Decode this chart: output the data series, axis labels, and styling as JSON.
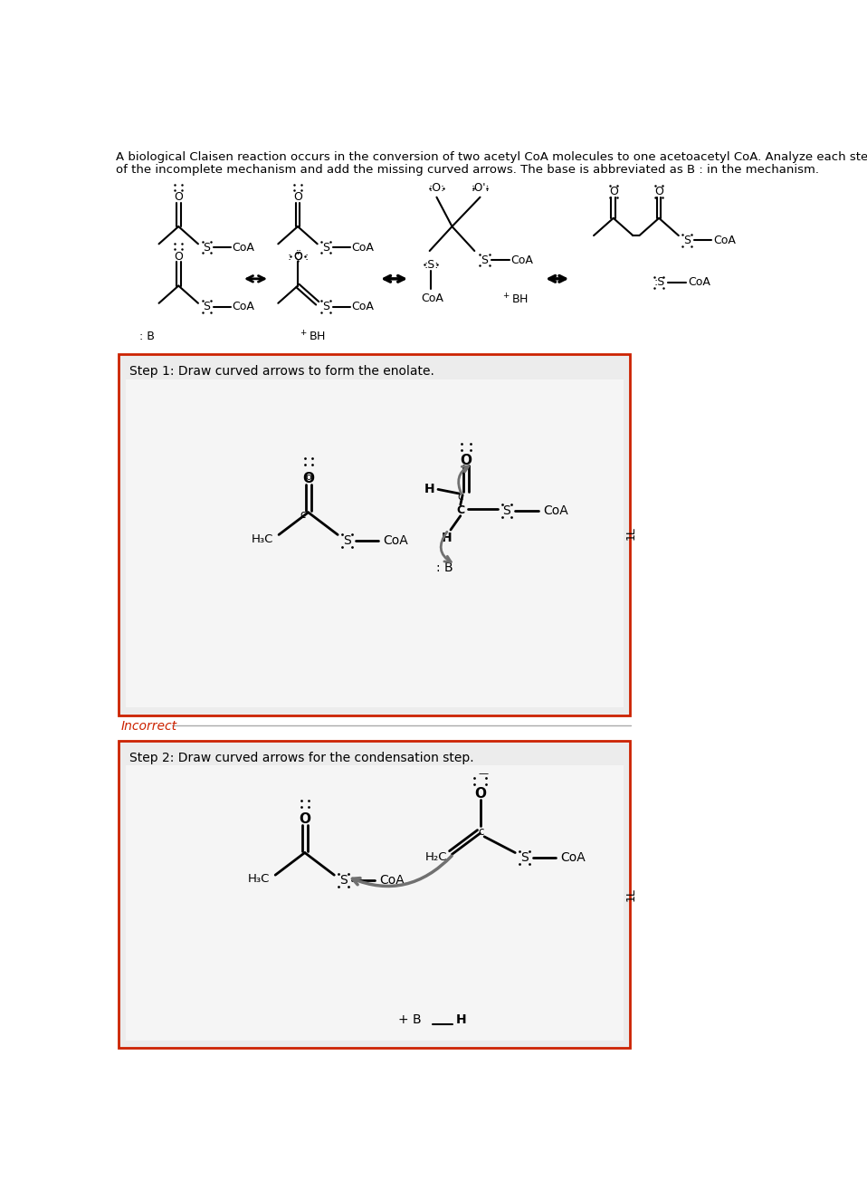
{
  "title_line1": "A biological Claisen reaction occurs in the conversion of two acetyl CoA molecules to one acetoacetyl CoA. Analyze each step",
  "title_line2": "of the incomplete mechanism and add the missing curved arrows. The base is abbreviated as B : in the mechanism.",
  "step1_label": "Step 1: Draw curved arrows to form the enolate.",
  "step2_label": "Step 2: Draw curved arrows for the condensation step.",
  "incorrect_label": "Incorrect",
  "bg_color": "#ffffff",
  "box_bg": "#ececec",
  "box_border": "#cc2200",
  "gray_arrow": "#707070",
  "black": "#000000",
  "red": "#cc2200"
}
